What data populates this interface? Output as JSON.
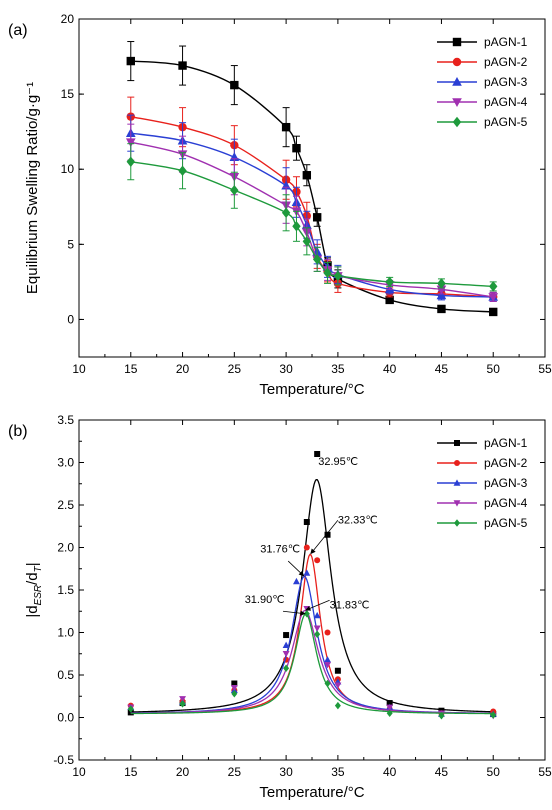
{
  "chart_data": [
    {
      "panel_label": "(a)",
      "type": "line",
      "xlabel": "Temperature/°C",
      "ylabel": "Equilibrium Swelling Ratio/g·g⁻¹",
      "xlim": [
        10,
        55
      ],
      "ylim": [
        -2.5,
        20
      ],
      "xticks": [
        10,
        15,
        20,
        25,
        30,
        35,
        40,
        45,
        50,
        55
      ],
      "yticks": [
        0,
        5,
        10,
        15,
        20
      ],
      "legend_position": "top-right",
      "error_bars": true,
      "x": [
        15,
        20,
        25,
        30,
        31,
        32,
        33,
        34,
        35,
        40,
        45,
        50
      ],
      "series": [
        {
          "name": "pAGN-1",
          "color": "#000000",
          "marker": "square",
          "values": [
            17.2,
            16.9,
            15.6,
            12.8,
            11.4,
            9.6,
            6.8,
            3.6,
            2.7,
            1.3,
            0.7,
            0.5
          ],
          "errors": [
            1.3,
            1.3,
            1.3,
            1.3,
            0.8,
            0.7,
            0.6,
            0.5,
            0.6,
            0.2,
            0.2,
            0.2
          ]
        },
        {
          "name": "pAGN-2",
          "color": "#e8211c",
          "marker": "circle",
          "values": [
            13.5,
            12.8,
            11.6,
            9.3,
            8.5,
            6.9,
            4.2,
            3.2,
            2.4,
            1.8,
            1.7,
            1.5
          ],
          "errors": [
            1.3,
            1.3,
            1.3,
            1.3,
            1.0,
            0.9,
            0.8,
            0.7,
            0.6,
            0.3,
            0.3,
            0.3
          ]
        },
        {
          "name": "pAGN-3",
          "color": "#2a3fd4",
          "marker": "triangle-up",
          "values": [
            12.4,
            11.9,
            10.8,
            8.9,
            7.8,
            6.3,
            4.5,
            3.5,
            3.0,
            2.0,
            1.6,
            1.5
          ],
          "errors": [
            1.2,
            1.2,
            1.2,
            1.2,
            1.0,
            0.9,
            0.8,
            0.7,
            0.6,
            0.3,
            0.3,
            0.3
          ]
        },
        {
          "name": "pAGN-4",
          "color": "#a030b0",
          "marker": "triangle-down",
          "values": [
            11.8,
            11.0,
            9.5,
            7.6,
            7.2,
            5.8,
            4.0,
            3.3,
            2.9,
            2.3,
            2.0,
            1.5
          ],
          "errors": [
            1.2,
            1.2,
            1.2,
            1.2,
            1.0,
            0.9,
            0.8,
            0.7,
            0.6,
            0.3,
            0.3,
            0.3
          ]
        },
        {
          "name": "pAGN-5",
          "color": "#1e9a3c",
          "marker": "diamond",
          "values": [
            10.5,
            9.9,
            8.6,
            7.1,
            6.2,
            5.2,
            4.0,
            3.1,
            2.9,
            2.5,
            2.4,
            2.2
          ],
          "errors": [
            1.2,
            1.2,
            1.2,
            1.2,
            1.0,
            0.9,
            0.8,
            0.7,
            0.6,
            0.3,
            0.3,
            0.3
          ]
        }
      ]
    },
    {
      "panel_label": "(b)",
      "type": "line",
      "xlabel": "Temperature/°C",
      "ylabel": "|d_ESR/d_T|",
      "ylabel_parts": [
        "|d",
        "ESR",
        "/d",
        "T",
        "|"
      ],
      "xlim": [
        10,
        55
      ],
      "ylim": [
        -0.5,
        3.5
      ],
      "xticks": [
        10,
        15,
        20,
        25,
        30,
        35,
        40,
        45,
        50,
        55
      ],
      "yticks": [
        -0.5,
        0.0,
        0.5,
        1.0,
        1.5,
        2.0,
        2.5,
        3.0,
        3.5
      ],
      "legend_position": "top-right",
      "series": [
        {
          "name": "pAGN-1",
          "color": "#000000",
          "marker": "square",
          "points": [
            [
              15,
              0.06
            ],
            [
              20,
              0.17
            ],
            [
              25,
              0.4
            ],
            [
              30,
              0.97
            ],
            [
              32,
              2.3
            ],
            [
              33,
              3.1
            ],
            [
              34,
              2.15
            ],
            [
              35,
              0.55
            ],
            [
              40,
              0.17
            ],
            [
              45,
              0.08
            ],
            [
              50,
              0.04
            ]
          ],
          "peak": 32.95,
          "amp": 2.76,
          "width": 1.7
        },
        {
          "name": "pAGN-2",
          "color": "#e8211c",
          "marker": "circle",
          "points": [
            [
              15,
              0.14
            ],
            [
              20,
              0.19
            ],
            [
              25,
              0.32
            ],
            [
              30,
              0.68
            ],
            [
              32,
              2.0
            ],
            [
              33,
              1.85
            ],
            [
              34,
              1.0
            ],
            [
              35,
              0.45
            ],
            [
              40,
              0.1
            ],
            [
              45,
              0.05
            ],
            [
              50,
              0.07
            ]
          ],
          "peak": 32.33,
          "amp": 1.88,
          "width": 1.2
        },
        {
          "name": "pAGN-3",
          "color": "#2a3fd4",
          "marker": "triangle-up",
          "points": [
            [
              15,
              0.12
            ],
            [
              20,
              0.18
            ],
            [
              25,
              0.32
            ],
            [
              30,
              0.85
            ],
            [
              31,
              1.6
            ],
            [
              32,
              1.7
            ],
            [
              33,
              1.2
            ],
            [
              34,
              0.68
            ],
            [
              35,
              0.42
            ],
            [
              40,
              0.12
            ],
            [
              45,
              0.04
            ],
            [
              50,
              0.04
            ]
          ],
          "peak": 31.76,
          "amp": 1.62,
          "width": 1.5
        },
        {
          "name": "pAGN-4",
          "color": "#a030b0",
          "marker": "triangle-down",
          "points": [
            [
              15,
              0.12
            ],
            [
              20,
              0.22
            ],
            [
              25,
              0.35
            ],
            [
              30,
              0.75
            ],
            [
              32,
              1.28
            ],
            [
              33,
              1.05
            ],
            [
              34,
              0.62
            ],
            [
              35,
              0.38
            ],
            [
              40,
              0.12
            ],
            [
              45,
              0.05
            ],
            [
              50,
              0.02
            ]
          ],
          "peak": 31.83,
          "amp": 1.22,
          "width": 1.6
        },
        {
          "name": "pAGN-5",
          "color": "#1e9a3c",
          "marker": "diamond",
          "points": [
            [
              15,
              0.1
            ],
            [
              20,
              0.16
            ],
            [
              25,
              0.28
            ],
            [
              30,
              0.58
            ],
            [
              32,
              1.22
            ],
            [
              33,
              0.98
            ],
            [
              34,
              0.4
            ],
            [
              35,
              0.14
            ],
            [
              40,
              0.05
            ],
            [
              45,
              0.02
            ],
            [
              50,
              0.03
            ]
          ],
          "peak": 31.9,
          "amp": 1.18,
          "width": 1.3
        }
      ],
      "annotations": [
        {
          "text": "32.95℃",
          "series": "pAGN-1"
        },
        {
          "text": "32.33℃",
          "series": "pAGN-2"
        },
        {
          "text": "31.76℃",
          "series": "pAGN-3"
        },
        {
          "text": "31.83℃",
          "series": "pAGN-4"
        },
        {
          "text": "31.90℃",
          "series": "pAGN-5"
        }
      ]
    }
  ]
}
